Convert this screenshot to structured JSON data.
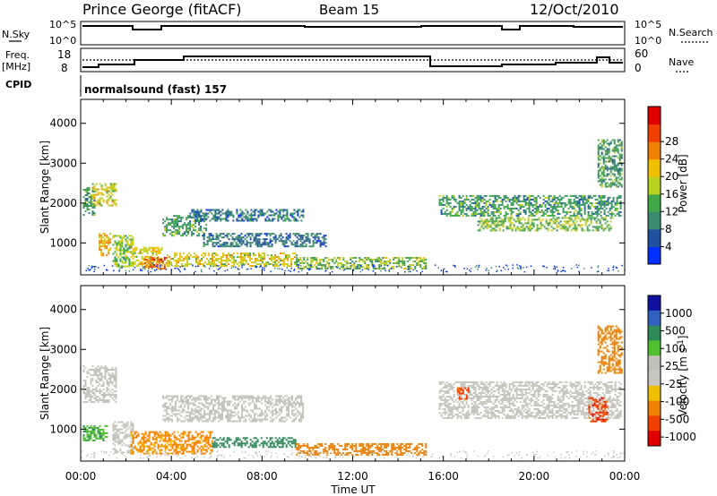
{
  "header": {
    "station": "Prince George (fitACF)",
    "beam": "Beam 15",
    "date": "12/Oct/2010"
  },
  "strips": {
    "nsky": {
      "label": "N.Sky",
      "right_label": "N.Search",
      "left_ticks": [
        "10^5",
        "10^0"
      ],
      "right_ticks": [
        "10^5",
        "10^0"
      ]
    },
    "freq": {
      "label_lines": [
        "Freq.",
        "[MHz]"
      ],
      "right_label": "Nave",
      "left_ticks": [
        "18",
        "8"
      ],
      "right_ticks": [
        "60",
        "0"
      ]
    },
    "cpid": {
      "label": "CPID",
      "program": "normalsound (fast) 157"
    }
  },
  "x_axis": {
    "label": "Time UT",
    "ticks": [
      "00:00",
      "04:00",
      "08:00",
      "12:00",
      "16:00",
      "20:00",
      "00:00"
    ]
  },
  "colors": {
    "power": [
      "#0030ff",
      "#2050a0",
      "#3a8a70",
      "#40a848",
      "#b8d020",
      "#f0c000",
      "#f08000",
      "#f04000",
      "#e00000"
    ],
    "velocity": [
      "#1010a0",
      "#3060c0",
      "#2e8b57",
      "#50c030",
      "#c0c0b8",
      "#c8c8c0",
      "#f0c000",
      "#f08000",
      "#f04000",
      "#e00000"
    ]
  },
  "chart_data": [
    {
      "type": "heatmap",
      "title": "Power",
      "xlabel": "Time UT",
      "ylabel": "Slant Range [km]",
      "xlim": [
        0,
        24
      ],
      "ylim": [
        200,
        4600
      ],
      "y_ticks": [
        1000,
        2000,
        3000,
        4000
      ],
      "colorbar_label": "Power [dB]",
      "colorbar_ticks": [
        "4",
        "8",
        "12",
        "16",
        "20",
        "24",
        "28"
      ],
      "regions": [
        {
          "t0": 0.1,
          "t1": 0.6,
          "r0": 1700,
          "r1": 2400,
          "v": 12
        },
        {
          "t0": 0.5,
          "t1": 1.6,
          "r0": 1950,
          "r1": 2500,
          "v": 20
        },
        {
          "t0": 0.8,
          "t1": 1.3,
          "r0": 700,
          "r1": 1250,
          "v": 22
        },
        {
          "t0": 1.4,
          "t1": 2.3,
          "r0": 400,
          "r1": 1200,
          "v": 16
        },
        {
          "t0": 2.2,
          "t1": 3.6,
          "r0": 450,
          "r1": 900,
          "v": 20
        },
        {
          "t0": 2.8,
          "t1": 3.8,
          "r0": 350,
          "r1": 650,
          "v": 28
        },
        {
          "t0": 3.6,
          "t1": 5.5,
          "r0": 1200,
          "r1": 1700,
          "v": 12
        },
        {
          "t0": 4.8,
          "t1": 9.8,
          "r0": 1550,
          "r1": 1850,
          "v": 8
        },
        {
          "t0": 3.8,
          "t1": 9.5,
          "r0": 420,
          "r1": 760,
          "v": 20
        },
        {
          "t0": 5.4,
          "t1": 10.8,
          "r0": 900,
          "r1": 1250,
          "v": 8
        },
        {
          "t0": 9.5,
          "t1": 15.2,
          "r0": 350,
          "r1": 650,
          "v": 16
        },
        {
          "t0": 15.8,
          "t1": 23.8,
          "r0": 1700,
          "r1": 2200,
          "v": 12
        },
        {
          "t0": 17.5,
          "t1": 23.5,
          "r0": 1300,
          "r1": 1650,
          "v": 16
        },
        {
          "t0": 22.8,
          "t1": 23.9,
          "r0": 2400,
          "r1": 3600,
          "v": 12
        }
      ]
    },
    {
      "type": "heatmap",
      "title": "Velocity",
      "xlabel": "Time UT",
      "ylabel": "Slant Range [km]",
      "xlim": [
        0,
        24
      ],
      "ylim": [
        200,
        4600
      ],
      "y_ticks": [
        1000,
        2000,
        3000,
        4000
      ],
      "colorbar_label": "Velocity [m s^-1]",
      "colorbar_ticks": [
        "1000",
        "500",
        "100",
        "25",
        "-25",
        "-100",
        "-500",
        "-1000"
      ],
      "regions": [
        {
          "t0": 0.1,
          "t1": 1.6,
          "r0": 1700,
          "r1": 2600,
          "v": 0
        },
        {
          "t0": 0.1,
          "t1": 1.2,
          "r0": 700,
          "r1": 1100,
          "v": 80
        },
        {
          "t0": 1.4,
          "t1": 2.3,
          "r0": 400,
          "r1": 1200,
          "v": 0
        },
        {
          "t0": 2.2,
          "t1": 5.8,
          "r0": 380,
          "r1": 950,
          "v": -150
        },
        {
          "t0": 3.6,
          "t1": 9.8,
          "r0": 1200,
          "r1": 1850,
          "v": 0
        },
        {
          "t0": 5.8,
          "t1": 9.5,
          "r0": 550,
          "r1": 800,
          "v": 200
        },
        {
          "t0": 9.5,
          "t1": 15.2,
          "r0": 350,
          "r1": 650,
          "v": -200
        },
        {
          "t0": 15.8,
          "t1": 23.8,
          "r0": 1300,
          "r1": 2200,
          "v": 0
        },
        {
          "t0": 16.6,
          "t1": 17.1,
          "r0": 1750,
          "r1": 2050,
          "v": -700
        },
        {
          "t0": 22.4,
          "t1": 23.2,
          "r0": 1200,
          "r1": 1800,
          "v": -800
        },
        {
          "t0": 22.8,
          "t1": 23.9,
          "r0": 2400,
          "r1": 3600,
          "v": -300
        }
      ]
    }
  ]
}
